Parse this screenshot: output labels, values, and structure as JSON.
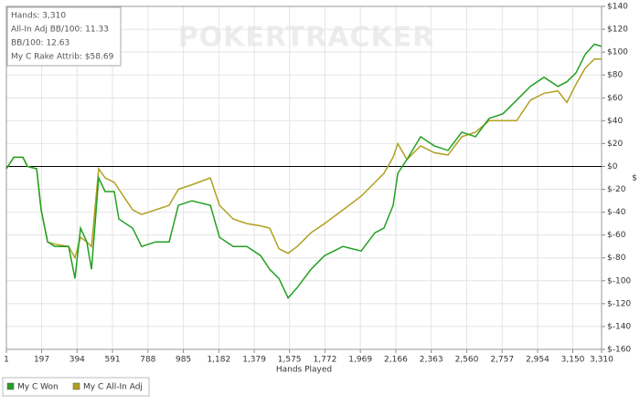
{
  "chart_data": {
    "type": "line",
    "watermark": "POKERTRACKER",
    "info": [
      "Hands: 3,310",
      "All-In Adj BB/100: 11.33",
      "BB/100: 12.63",
      "My C Rake Attrib: $58.69"
    ],
    "xlabel": "Hands Played",
    "ylabel": "$",
    "x": [
      1,
      42,
      93,
      118,
      169,
      194,
      230,
      270,
      347,
      382,
      413,
      448,
      474,
      514,
      550,
      601,
      626,
      703,
      753,
      830,
      906,
      957,
      1033,
      1135,
      1186,
      1262,
      1338,
      1414,
      1465,
      1516,
      1567,
      1618,
      1694,
      1770,
      1872,
      1973,
      2050,
      2100,
      2151,
      2177,
      2228,
      2304,
      2380,
      2456,
      2533,
      2609,
      2685,
      2761,
      2838,
      2914,
      2990,
      3067,
      3117,
      3168,
      3219,
      3270,
      3310
    ],
    "series": [
      {
        "name": "My C Won",
        "color": "#22a022",
        "values": [
          -2,
          8,
          8,
          0,
          -2,
          -38,
          -66,
          -70,
          -70,
          -98,
          -54,
          -66,
          -90,
          -10,
          -22,
          -22,
          -46,
          -54,
          -70,
          -66,
          -66,
          -34,
          -30,
          -34,
          -62,
          -70,
          -70,
          -78,
          -90,
          -98,
          -115,
          -106,
          -90,
          -78,
          -70,
          -74,
          -58,
          -54,
          -34,
          -6,
          6,
          26,
          18,
          14,
          30,
          26,
          42,
          46,
          58,
          70,
          78,
          70,
          74,
          82,
          98,
          107,
          105
        ]
      },
      {
        "name": "My C All-In Adj",
        "color": "#b0a020",
        "values": [
          -2,
          8,
          8,
          0,
          -2,
          -38,
          -66,
          -68,
          -70,
          -80,
          -62,
          -66,
          -70,
          -2,
          -10,
          -14,
          -20,
          -38,
          -42,
          -38,
          -34,
          -20,
          -16,
          -10,
          -34,
          -46,
          -50,
          -52,
          -54,
          -72,
          -76,
          -70,
          -58,
          -50,
          -38,
          -26,
          -14,
          -6,
          8,
          20,
          6,
          18,
          12,
          10,
          26,
          30,
          40,
          40,
          40,
          58,
          64,
          66,
          56,
          72,
          86,
          94,
          94
        ]
      }
    ],
    "xlim": [
      1,
      3310
    ],
    "xticks": [
      1,
      197,
      394,
      591,
      788,
      985,
      {
        "value": 1182,
        "label": "1,182"
      },
      {
        "value": 1379,
        "label": "1,379"
      },
      {
        "value": 1575,
        "label": "1,575"
      },
      {
        "value": 1772,
        "label": "1,772"
      },
      {
        "value": 1969,
        "label": "1,969"
      },
      {
        "value": 2166,
        "label": "2,166"
      },
      {
        "value": 2363,
        "label": "2,363"
      },
      {
        "value": 2560,
        "label": "2,560"
      },
      {
        "value": 2757,
        "label": "2,757"
      },
      {
        "value": 2954,
        "label": "2,954"
      },
      {
        "value": 3150,
        "label": "3,150"
      },
      {
        "value": 3310,
        "label": "3,310"
      }
    ],
    "ylim": [
      -160,
      140
    ],
    "yticks": [
      {
        "value": 140,
        "label": "$140"
      },
      {
        "value": 120,
        "label": "$120"
      },
      {
        "value": 100,
        "label": "$100"
      },
      {
        "value": 80,
        "label": "$80"
      },
      {
        "value": 60,
        "label": "$60"
      },
      {
        "value": 40,
        "label": "$40"
      },
      {
        "value": 20,
        "label": "$20"
      },
      {
        "value": 0,
        "label": "$0"
      },
      {
        "value": -20,
        "label": "$-20"
      },
      {
        "value": -40,
        "label": "$-40"
      },
      {
        "value": -60,
        "label": "$-60"
      },
      {
        "value": -80,
        "label": "$-80"
      },
      {
        "value": -100,
        "label": "$-100"
      },
      {
        "value": -120,
        "label": "$-120"
      },
      {
        "value": -140,
        "label": "$-140"
      },
      {
        "value": -160,
        "label": "$-160"
      }
    ],
    "grid": true
  }
}
